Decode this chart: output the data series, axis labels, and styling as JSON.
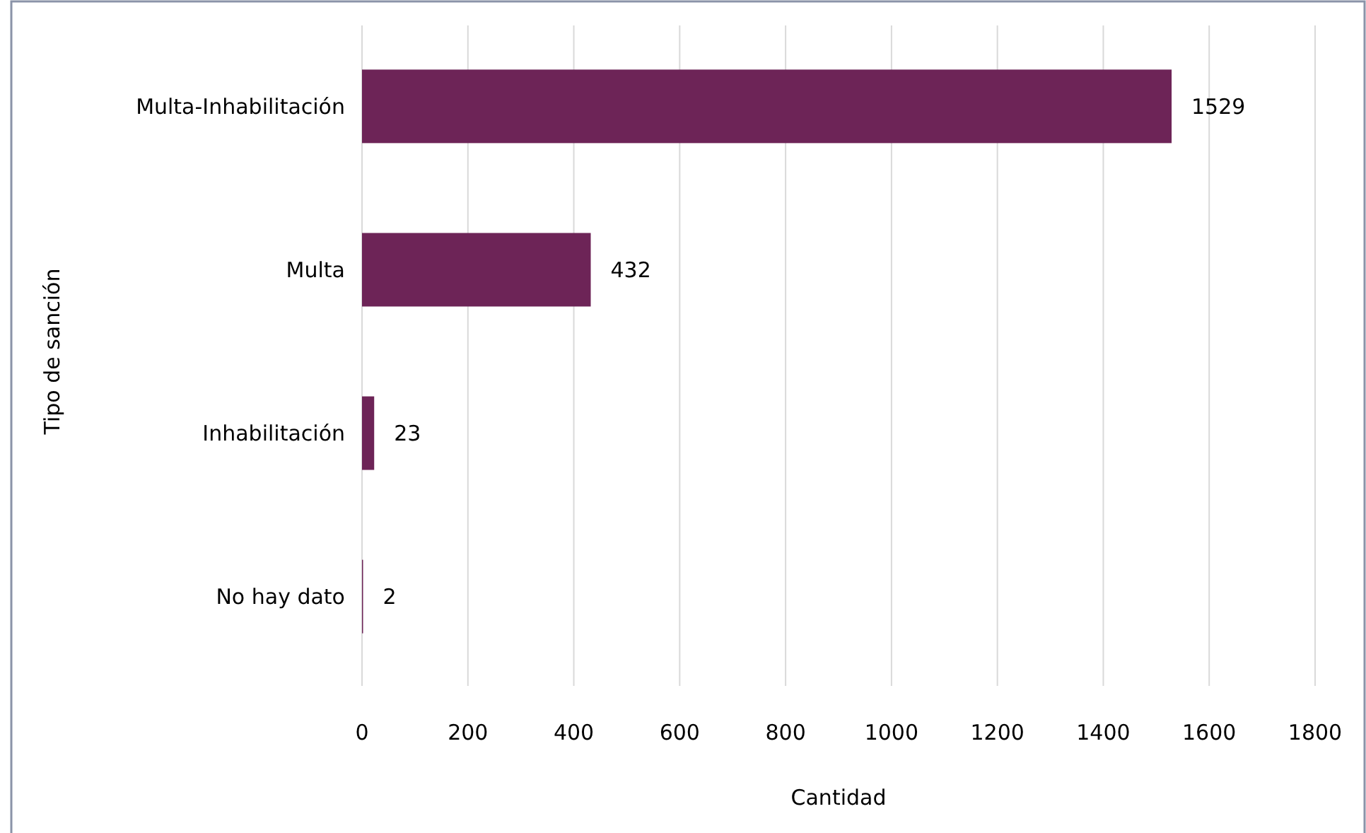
{
  "chart_data": {
    "type": "bar",
    "orientation": "horizontal",
    "categories": [
      "Multa-Inhabilitación",
      "Multa",
      "Inhabilitación",
      "No hay dato"
    ],
    "values": [
      1529,
      432,
      23,
      2
    ],
    "color": "#6d2457",
    "xlim": [
      0,
      1800
    ],
    "xticks": [
      0,
      200,
      400,
      600,
      800,
      1000,
      1200,
      1400,
      1600,
      1800
    ],
    "xlabel": "Cantidad",
    "ylabel": "Tipo de sanción",
    "grid": "x",
    "data_labels": true
  }
}
